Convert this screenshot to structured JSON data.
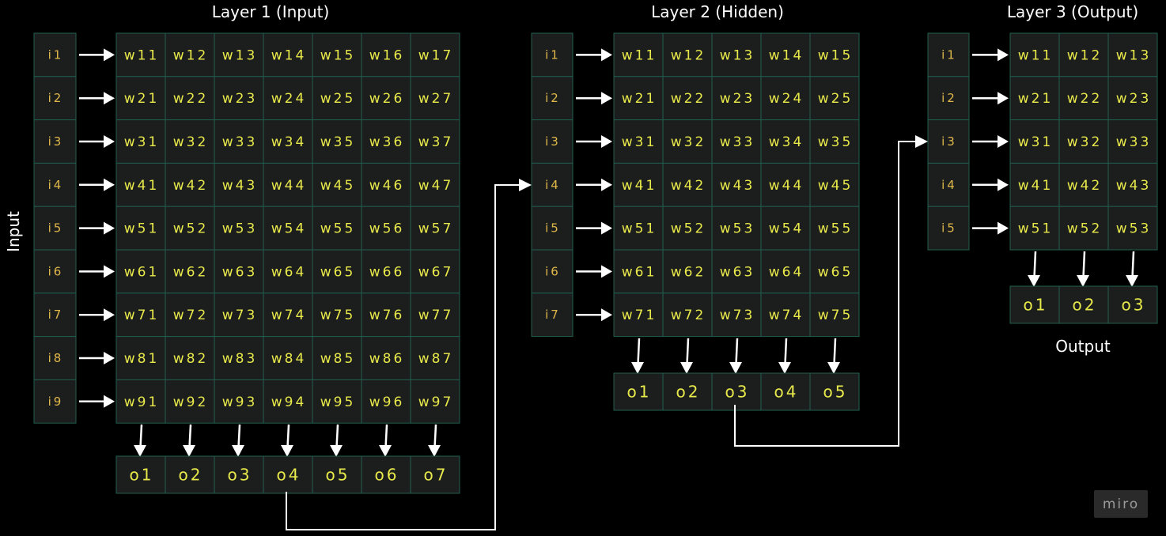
{
  "layers": [
    {
      "title": "Layer 1 (Input)",
      "inputs": [
        "i1",
        "i2",
        "i3",
        "i4",
        "i5",
        "i6",
        "i7",
        "i8",
        "i9"
      ],
      "weights": [
        [
          "w11",
          "w12",
          "w13",
          "w14",
          "w15",
          "w16",
          "w17"
        ],
        [
          "w21",
          "w22",
          "w23",
          "w24",
          "w25",
          "w26",
          "w27"
        ],
        [
          "w31",
          "w32",
          "w33",
          "w34",
          "w35",
          "w36",
          "w37"
        ],
        [
          "w41",
          "w42",
          "w43",
          "w44",
          "w45",
          "w46",
          "w47"
        ],
        [
          "w51",
          "w52",
          "w53",
          "w54",
          "w55",
          "w56",
          "w57"
        ],
        [
          "w61",
          "w62",
          "w63",
          "w64",
          "w65",
          "w66",
          "w67"
        ],
        [
          "w71",
          "w72",
          "w73",
          "w74",
          "w75",
          "w76",
          "w77"
        ],
        [
          "w81",
          "w82",
          "w83",
          "w84",
          "w85",
          "w86",
          "w87"
        ],
        [
          "w91",
          "w92",
          "w93",
          "w94",
          "w95",
          "w96",
          "w97"
        ]
      ],
      "outputs": [
        "o1",
        "o2",
        "o3",
        "o4",
        "o5",
        "o6",
        "o7"
      ]
    },
    {
      "title": "Layer 2 (Hidden)",
      "inputs": [
        "i1",
        "i2",
        "i3",
        "i4",
        "i5",
        "i6",
        "i7"
      ],
      "weights": [
        [
          "w11",
          "w12",
          "w13",
          "w14",
          "w15"
        ],
        [
          "w21",
          "w22",
          "w23",
          "w24",
          "w25"
        ],
        [
          "w31",
          "w32",
          "w33",
          "w34",
          "w35"
        ],
        [
          "w41",
          "w42",
          "w43",
          "w44",
          "w45"
        ],
        [
          "w51",
          "w52",
          "w53",
          "w54",
          "w55"
        ],
        [
          "w61",
          "w62",
          "w63",
          "w64",
          "w65"
        ],
        [
          "w71",
          "w72",
          "w73",
          "w74",
          "w75"
        ]
      ],
      "outputs": [
        "o1",
        "o2",
        "o3",
        "o4",
        "o5"
      ]
    },
    {
      "title": "Layer 3 (Output)",
      "inputs": [
        "i1",
        "i2",
        "i3",
        "i4",
        "i5"
      ],
      "weights": [
        [
          "w11",
          "w12",
          "w13"
        ],
        [
          "w21",
          "w22",
          "w23"
        ],
        [
          "w31",
          "w32",
          "w33"
        ],
        [
          "w41",
          "w42",
          "w43"
        ],
        [
          "w51",
          "w52",
          "w53"
        ]
      ],
      "outputs": [
        "o1",
        "o2",
        "o3"
      ]
    }
  ],
  "labels": {
    "input": "Input",
    "output": "Output"
  },
  "logo": "miro"
}
